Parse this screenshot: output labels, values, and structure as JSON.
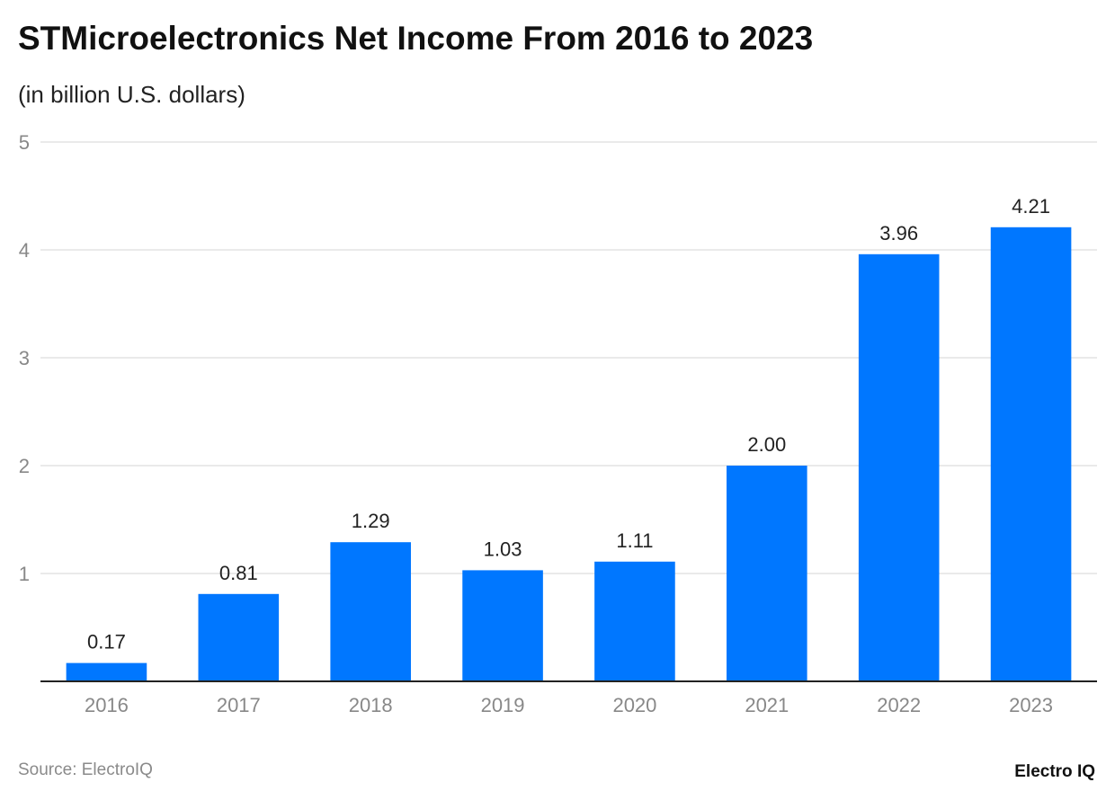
{
  "header": {
    "title": "STMicroelectronics Net Income From 2016 to 2023",
    "subtitle": "(in billion U.S. dollars)"
  },
  "footer": {
    "source": "Source: ElectroIQ",
    "brand": "Electro IQ"
  },
  "colors": {
    "bar": "#0077FF",
    "grid": "#e3e3e3",
    "axis": "#222222",
    "tick_text": "#888888",
    "value_text": "#222222"
  },
  "chart_data": {
    "type": "bar",
    "categories": [
      "2016",
      "2017",
      "2018",
      "2019",
      "2020",
      "2021",
      "2022",
      "2023"
    ],
    "values": [
      0.17,
      0.81,
      1.29,
      1.03,
      1.11,
      2.0,
      3.96,
      4.21
    ],
    "value_labels": [
      "0.17",
      "0.81",
      "1.29",
      "1.03",
      "1.11",
      "2.00",
      "3.96",
      "4.21"
    ],
    "ylim": [
      0,
      5
    ],
    "yticks": [
      1,
      2,
      3,
      4,
      5
    ],
    "grid": true,
    "legend": "none"
  }
}
